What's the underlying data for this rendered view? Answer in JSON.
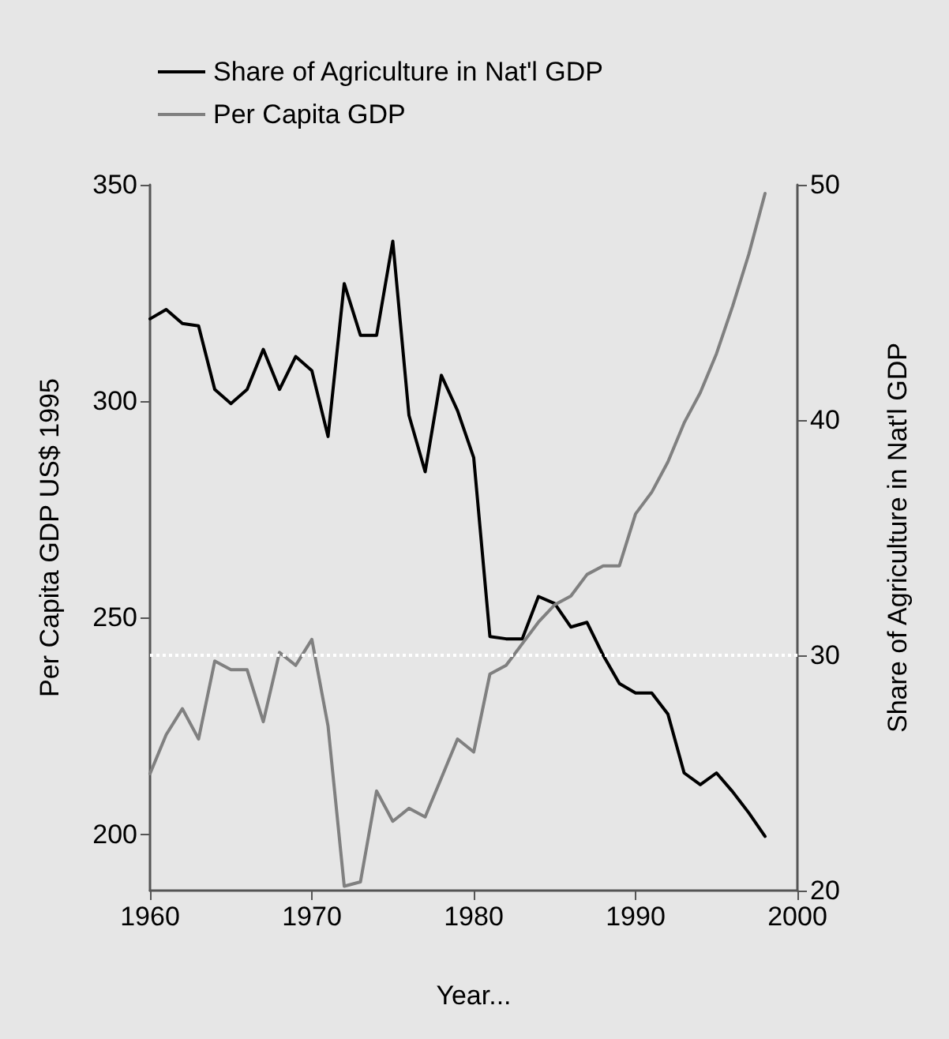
{
  "chart_data": {
    "type": "line",
    "xlabel": "Year...",
    "ylabel": "Per Capita GDP US$ 1995",
    "y2label": "Share of Agriculture in Nat'l GDP",
    "x": [
      1960,
      1961,
      1962,
      1963,
      1964,
      1965,
      1966,
      1967,
      1968,
      1969,
      1970,
      1971,
      1972,
      1973,
      1974,
      1975,
      1976,
      1977,
      1978,
      1979,
      1980,
      1981,
      1982,
      1983,
      1984,
      1985,
      1986,
      1987,
      1988,
      1989,
      1990,
      1991,
      1992,
      1993,
      1994,
      1995,
      1996,
      1997,
      1998
    ],
    "series": [
      {
        "name": "Share of Agriculture in Nat'l GDP",
        "color": "#000000",
        "axis": "y2",
        "values": [
          44.3,
          44.7,
          44.1,
          44.0,
          41.3,
          40.7,
          41.3,
          43.0,
          41.3,
          42.7,
          42.1,
          39.3,
          45.8,
          43.6,
          43.6,
          47.6,
          40.2,
          37.8,
          41.9,
          40.4,
          38.4,
          30.8,
          30.7,
          30.7,
          32.5,
          32.2,
          31.2,
          31.4,
          30.0,
          28.8,
          28.4,
          28.4,
          27.5,
          25.0,
          24.5,
          25.0,
          24.2,
          23.3,
          22.3
        ]
      },
      {
        "name": "Per Capita GDP",
        "color": "#808080",
        "values": [
          214,
          223,
          229,
          222,
          240,
          238,
          238,
          226,
          242,
          239,
          245,
          225,
          188,
          189,
          210,
          203,
          206,
          204,
          213,
          222,
          219,
          237,
          239,
          244,
          249,
          253,
          255,
          260,
          262,
          262,
          274,
          279,
          286,
          295,
          302,
          311,
          322,
          334,
          348
        ]
      }
    ],
    "xlim": [
      1960,
      2000
    ],
    "xticks": [
      1960,
      1970,
      1980,
      1990,
      2000
    ],
    "ylim": [
      187,
      350
    ],
    "yticks": [
      200,
      250,
      300,
      350
    ],
    "y2lim": [
      20,
      50
    ],
    "y2ticks": [
      20,
      30,
      40,
      50
    ],
    "ref_lines": [
      {
        "axis": "y2",
        "value": 30,
        "color": "#ffffff",
        "line_style": "dotted"
      }
    ],
    "legend": "top",
    "marker": "none",
    "line_style": "solid",
    "grid": false
  }
}
